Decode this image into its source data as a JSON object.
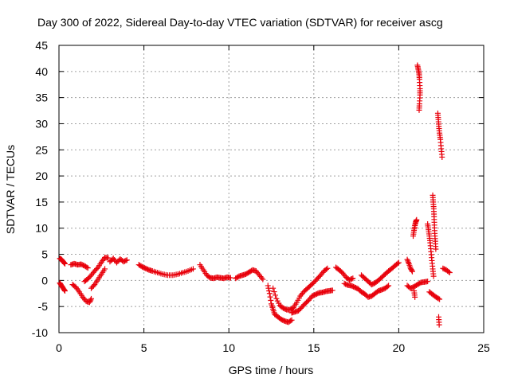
{
  "chart_data": {
    "type": "scatter",
    "title": "Day 300 of 2022, Sidereal Day-to-day VTEC variation (SDTVAR) for receiver ascg",
    "xlabel": "GPS time / hours",
    "ylabel": "SDTVAR / TECUs",
    "xlim": [
      0,
      25
    ],
    "ylim": [
      -10,
      45
    ],
    "xticks": [
      0,
      5,
      10,
      15,
      20,
      25
    ],
    "yticks": [
      -10,
      -5,
      0,
      5,
      10,
      15,
      20,
      25,
      30,
      35,
      40,
      45
    ],
    "grid": true,
    "marker": "+",
    "color": "#e8000b",
    "series": [
      {
        "name": "SDTVAR",
        "segments": [
          [
            [
              0.05,
              4.2
            ],
            [
              0.15,
              4.0
            ],
            [
              0.25,
              3.6
            ],
            [
              0.35,
              3.2
            ]
          ],
          [
            [
              0.05,
              -0.5
            ],
            [
              0.15,
              -1.0
            ],
            [
              0.25,
              -1.5
            ],
            [
              0.35,
              -2.0
            ]
          ],
          [
            [
              0.7,
              3.0
            ],
            [
              0.9,
              3.2
            ],
            [
              1.1,
              3.0
            ],
            [
              1.3,
              3.1
            ],
            [
              1.5,
              2.8
            ],
            [
              1.7,
              2.4
            ]
          ],
          [
            [
              0.8,
              -0.8
            ],
            [
              1.0,
              -1.3
            ],
            [
              1.2,
              -2.2
            ],
            [
              1.4,
              -3.2
            ],
            [
              1.6,
              -4.0
            ],
            [
              1.8,
              -4.2
            ],
            [
              1.9,
              -3.5
            ]
          ],
          [
            [
              1.5,
              -0.2
            ],
            [
              1.7,
              0.3
            ],
            [
              1.9,
              1.0
            ],
            [
              2.1,
              1.8
            ],
            [
              2.3,
              2.5
            ],
            [
              2.5,
              3.5
            ],
            [
              2.7,
              4.4
            ],
            [
              2.9,
              4.3
            ]
          ],
          [
            [
              1.9,
              -1.5
            ],
            [
              2.1,
              -0.8
            ],
            [
              2.3,
              0.2
            ],
            [
              2.5,
              1.2
            ],
            [
              2.7,
              2.2
            ]
          ],
          [
            [
              3.0,
              3.6
            ],
            [
              3.2,
              4.2
            ],
            [
              3.4,
              3.4
            ],
            [
              3.6,
              4.1
            ],
            [
              3.8,
              3.6
            ],
            [
              4.0,
              3.9
            ]
          ],
          [
            [
              4.7,
              3.0
            ],
            [
              4.9,
              2.6
            ],
            [
              5.1,
              2.3
            ],
            [
              5.3,
              2.0
            ],
            [
              5.5,
              1.8
            ],
            [
              5.8,
              1.5
            ],
            [
              6.1,
              1.2
            ],
            [
              6.4,
              1.0
            ],
            [
              6.7,
              1.0
            ],
            [
              7.0,
              1.2
            ],
            [
              7.3,
              1.5
            ],
            [
              7.6,
              1.8
            ],
            [
              7.9,
              2.2
            ]
          ],
          [
            [
              8.3,
              3.0
            ],
            [
              8.5,
              2.0
            ],
            [
              8.7,
              1.0
            ],
            [
              8.9,
              0.5
            ],
            [
              9.1,
              0.4
            ],
            [
              9.3,
              0.6
            ],
            [
              9.5,
              0.5
            ],
            [
              9.7,
              0.4
            ],
            [
              9.9,
              0.6
            ],
            [
              10.1,
              0.5
            ]
          ],
          [
            [
              10.4,
              0.4
            ],
            [
              10.6,
              0.8
            ],
            [
              10.8,
              1.0
            ],
            [
              11.0,
              1.2
            ],
            [
              11.2,
              1.6
            ],
            [
              11.4,
              2.0
            ],
            [
              11.6,
              1.8
            ],
            [
              11.8,
              1.0
            ],
            [
              12.0,
              0.2
            ]
          ],
          [
            [
              12.3,
              -1.0
            ],
            [
              12.4,
              -2.5
            ],
            [
              12.5,
              -4.5
            ],
            [
              12.6,
              -5.5
            ],
            [
              12.7,
              -6.5
            ],
            [
              12.9,
              -7.0
            ],
            [
              13.1,
              -7.5
            ],
            [
              13.3,
              -7.8
            ],
            [
              13.5,
              -8.0
            ],
            [
              13.7,
              -7.6
            ]
          ],
          [
            [
              12.6,
              -1.5
            ],
            [
              12.8,
              -3.5
            ],
            [
              13.0,
              -4.8
            ],
            [
              13.2,
              -5.3
            ],
            [
              13.4,
              -5.6
            ],
            [
              13.6,
              -5.6
            ],
            [
              13.8,
              -5.2
            ],
            [
              14.0,
              -4.2
            ],
            [
              14.2,
              -3.0
            ],
            [
              14.4,
              -2.2
            ],
            [
              14.6,
              -1.6
            ],
            [
              14.8,
              -1.0
            ],
            [
              15.0,
              -0.4
            ],
            [
              15.2,
              0.3
            ],
            [
              15.4,
              1.0
            ],
            [
              15.6,
              1.8
            ],
            [
              15.8,
              2.3
            ]
          ],
          [
            [
              13.7,
              -6.2
            ],
            [
              13.9,
              -6.0
            ],
            [
              14.1,
              -5.8
            ],
            [
              14.3,
              -5.1
            ],
            [
              14.5,
              -4.4
            ],
            [
              14.7,
              -3.8
            ],
            [
              14.9,
              -3.0
            ],
            [
              15.1,
              -2.7
            ],
            [
              15.3,
              -2.4
            ],
            [
              15.5,
              -2.3
            ],
            [
              15.7,
              -2.1
            ],
            [
              15.9,
              -2.0
            ],
            [
              16.1,
              -1.9
            ]
          ],
          [
            [
              16.3,
              2.5
            ],
            [
              16.5,
              2.0
            ],
            [
              16.7,
              1.4
            ],
            [
              16.9,
              0.6
            ],
            [
              17.1,
              0.1
            ],
            [
              17.3,
              0.4
            ]
          ],
          [
            [
              16.8,
              -0.6
            ],
            [
              17.0,
              -0.9
            ],
            [
              17.2,
              -1.0
            ],
            [
              17.4,
              -1.3
            ],
            [
              17.6,
              -1.6
            ],
            [
              17.8,
              -2.2
            ],
            [
              18.0,
              -2.6
            ],
            [
              18.2,
              -3.2
            ],
            [
              18.4,
              -3.0
            ],
            [
              18.6,
              -2.5
            ],
            [
              18.8,
              -2.0
            ],
            [
              19.0,
              -1.8
            ],
            [
              19.2,
              -1.5
            ],
            [
              19.4,
              -1.0
            ]
          ],
          [
            [
              17.8,
              1.0
            ],
            [
              18.0,
              0.4
            ],
            [
              18.2,
              -0.2
            ],
            [
              18.4,
              -0.8
            ],
            [
              18.6,
              -0.5
            ],
            [
              18.8,
              0.0
            ],
            [
              19.0,
              0.6
            ],
            [
              19.2,
              1.2
            ],
            [
              19.4,
              1.8
            ],
            [
              19.6,
              2.3
            ],
            [
              19.8,
              2.9
            ],
            [
              20.0,
              3.4
            ]
          ],
          [
            [
              20.5,
              4.0
            ],
            [
              20.6,
              3.2
            ],
            [
              20.7,
              2.3
            ],
            [
              20.8,
              1.7
            ]
          ],
          [
            [
              20.5,
              -1.0
            ],
            [
              20.7,
              -1.5
            ],
            [
              20.9,
              -1.2
            ],
            [
              21.1,
              -0.8
            ],
            [
              21.3,
              -0.4
            ],
            [
              21.5,
              -0.3
            ],
            [
              21.7,
              -0.2
            ]
          ],
          [
            [
              20.9,
              -2.0
            ],
            [
              20.95,
              -3.2
            ]
          ],
          [
            [
              20.85,
              8.5
            ],
            [
              20.9,
              9.6
            ],
            [
              20.95,
              10.5
            ],
            [
              21.0,
              11.2
            ],
            [
              21.05,
              11.6
            ]
          ],
          [
            [
              21.1,
              41.2
            ],
            [
              21.15,
              40.4
            ],
            [
              21.2,
              39.5
            ],
            [
              21.22,
              38.5
            ],
            [
              21.25,
              36.7
            ],
            [
              21.25,
              35.5
            ],
            [
              21.22,
              33.8
            ],
            [
              21.2,
              32.6
            ]
          ],
          [
            [
              21.7,
              10.8
            ],
            [
              21.75,
              9.7
            ],
            [
              21.8,
              8.5
            ],
            [
              21.85,
              7.2
            ],
            [
              21.9,
              5.5
            ],
            [
              21.95,
              3.8
            ],
            [
              22.0,
              2.2
            ],
            [
              22.05,
              0.8
            ]
          ],
          [
            [
              22.0,
              16.3
            ],
            [
              22.03,
              15.0
            ],
            [
              22.06,
              13.7
            ],
            [
              22.08,
              12.2
            ],
            [
              22.1,
              10.6
            ],
            [
              22.12,
              9.0
            ],
            [
              22.15,
              7.5
            ],
            [
              22.18,
              6.0
            ]
          ],
          [
            [
              21.8,
              -2.2
            ],
            [
              22.0,
              -2.7
            ],
            [
              22.2,
              -3.2
            ],
            [
              22.4,
              -3.6
            ]
          ],
          [
            [
              22.3,
              32.0
            ],
            [
              22.33,
              30.8
            ],
            [
              22.36,
              29.5
            ],
            [
              22.4,
              28.2
            ],
            [
              22.45,
              27.0
            ],
            [
              22.5,
              25.2
            ],
            [
              22.55,
              23.6
            ]
          ],
          [
            [
              22.35,
              -7.0
            ],
            [
              22.38,
              -8.5
            ]
          ],
          [
            [
              22.6,
              2.3
            ],
            [
              22.8,
              2.0
            ],
            [
              23.0,
              1.5
            ]
          ]
        ]
      }
    ]
  }
}
